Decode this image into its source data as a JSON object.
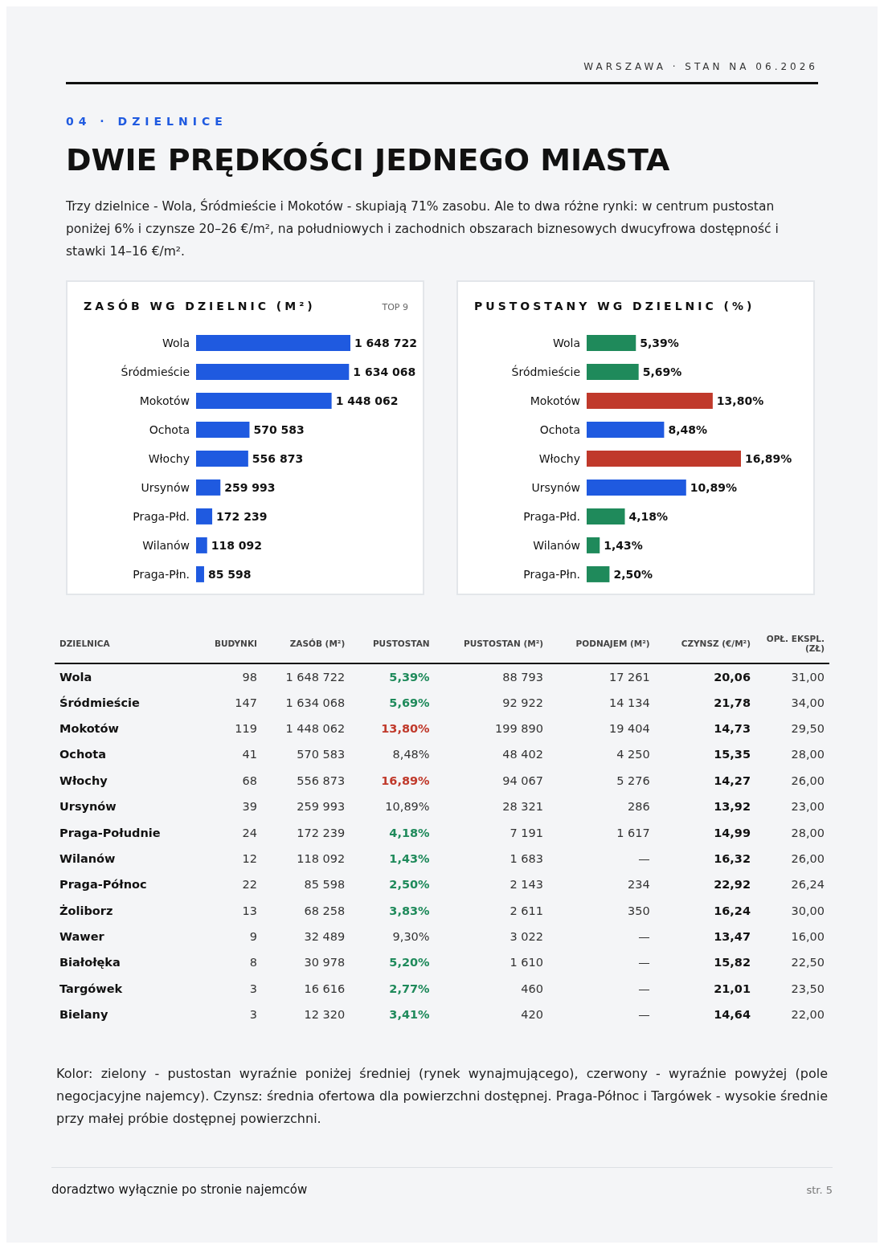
{
  "chart_data": [
    {
      "type": "other",
      "title": "DWIE PRĘDKOŚCI JEDNEGO MIASTA",
      "subtitle": "Trzy dzielnice - Wola, Śródmieście i Mokotów - skupiają 71% zasobu. Ale to dwa różne rynki: w centrum pustostan poniżej 6% i czynsze 20–26 €/m², na południowych i zachodnich obszarach biznesowych dwucyfrowa dostępność i stawki 14–16 €/m².",
      "annotations": [
        "WARSZAWA · STAN NA 06.2026",
        "04 · DZIELNICE"
      ]
    },
    {
      "type": "bar",
      "orientation": "horizontal",
      "title": "ZASÓB WG DZIELNIC (M²)",
      "annotations": [
        "TOP 9"
      ],
      "categories": [
        "Wola",
        "Śródmieście",
        "Mokotów",
        "Ochota",
        "Włochy",
        "Ursynów",
        "Praga-Płd.",
        "Wilanów",
        "Praga-Płn."
      ],
      "values": [
        1648722,
        1634068,
        1448062,
        570583,
        556873,
        259993,
        172239,
        118092,
        85598
      ],
      "color": "#1f5ae0",
      "value_labels": [
        "1 648 722",
        "1 634 068",
        "1 448 062",
        "570 583",
        "556 873",
        "259 993",
        "172 239",
        "118 092",
        "85 598"
      ]
    },
    {
      "type": "bar",
      "orientation": "horizontal",
      "title": "PUSTOSTANY WG DZIELNIC (%)",
      "categories": [
        "Wola",
        "Śródmieście",
        "Mokotów",
        "Ochota",
        "Włochy",
        "Ursynów",
        "Praga-Płd.",
        "Wilanów",
        "Praga-Płn."
      ],
      "values": [
        5.39,
        5.69,
        13.8,
        8.48,
        16.89,
        10.89,
        4.18,
        1.43,
        2.5
      ],
      "colors": [
        "#1f8a5b",
        "#1f8a5b",
        "#c0392b",
        "#1f5ae0",
        "#c0392b",
        "#1f5ae0",
        "#1f8a5b",
        "#1f8a5b",
        "#1f8a5b"
      ],
      "value_labels": [
        "5,39%",
        "5,69%",
        "13,80%",
        "8,48%",
        "16,89%",
        "10,89%",
        "4,18%",
        "1,43%",
        "2,50%"
      ]
    },
    {
      "type": "other",
      "categories": [
        "DZIELNICA",
        "BUDYNKI",
        "ZASÓB (M²)",
        "PUSTOSTAN",
        "PUSTOSTAN (M²)",
        "PODNAJEM (M²)",
        "CZYNSZ (€/M²)",
        "OPŁ. EKSPL. (ZŁ)"
      ],
      "cell_labels": [
        [
          "Wola",
          "98",
          "1 648 722",
          "5,39%",
          "88 793",
          "17 261",
          "20,06",
          "31,00"
        ],
        [
          "Śródmieście",
          "147",
          "1 634 068",
          "5,69%",
          "92 922",
          "14 134",
          "21,78",
          "34,00"
        ],
        [
          "Mokotów",
          "119",
          "1 448 062",
          "13,80%",
          "199 890",
          "19 404",
          "14,73",
          "29,50"
        ],
        [
          "Ochota",
          "41",
          "570 583",
          "8,48%",
          "48 402",
          "4 250",
          "15,35",
          "28,00"
        ],
        [
          "Włochy",
          "68",
          "556 873",
          "16,89%",
          "94 067",
          "5 276",
          "14,27",
          "26,00"
        ],
        [
          "Ursynów",
          "39",
          "259 993",
          "10,89%",
          "28 321",
          "286",
          "13,92",
          "23,00"
        ],
        [
          "Praga-Południe",
          "24",
          "172 239",
          "4,18%",
          "7 191",
          "1 617",
          "14,99",
          "28,00"
        ],
        [
          "Wilanów",
          "12",
          "118 092",
          "1,43%",
          "1 683",
          "—",
          "16,32",
          "26,00"
        ],
        [
          "Praga-Północ",
          "22",
          "85 598",
          "2,50%",
          "2 143",
          "234",
          "22,92",
          "26,24"
        ],
        [
          "Żoliborz",
          "13",
          "68 258",
          "3,83%",
          "2 611",
          "350",
          "16,24",
          "30,00"
        ],
        [
          "Wawer",
          "9",
          "32 489",
          "9,30%",
          "3 022",
          "—",
          "13,47",
          "16,00"
        ],
        [
          "Białołęka",
          "8",
          "30 978",
          "5,20%",
          "1 610",
          "—",
          "15,82",
          "22,50"
        ],
        [
          "Targówek",
          "3",
          "16 616",
          "2,77%",
          "460",
          "—",
          "21,01",
          "23,50"
        ],
        [
          "Bielany",
          "3",
          "12 320",
          "3,41%",
          "420",
          "—",
          "14,64",
          "22,00"
        ]
      ],
      "colors": [
        [
          null,
          null,
          null,
          "#1f8a5b",
          null,
          null,
          null,
          null
        ],
        [
          null,
          null,
          null,
          "#1f8a5b",
          null,
          null,
          null,
          null
        ],
        [
          null,
          null,
          null,
          "#c0392b",
          null,
          null,
          null,
          null
        ],
        [
          null,
          null,
          null,
          null,
          null,
          null,
          null,
          null
        ],
        [
          null,
          null,
          null,
          "#c0392b",
          null,
          null,
          null,
          null
        ],
        [
          null,
          null,
          null,
          null,
          null,
          null,
          null,
          null
        ],
        [
          null,
          null,
          null,
          "#1f8a5b",
          null,
          null,
          null,
          null
        ],
        [
          null,
          null,
          null,
          "#1f8a5b",
          null,
          null,
          null,
          null
        ],
        [
          null,
          null,
          null,
          "#1f8a5b",
          null,
          null,
          null,
          null
        ],
        [
          null,
          null,
          null,
          "#1f8a5b",
          null,
          null,
          null,
          null
        ],
        [
          null,
          null,
          null,
          null,
          null,
          null,
          null,
          null
        ],
        [
          null,
          null,
          null,
          "#1f8a5b",
          null,
          null,
          null,
          null
        ],
        [
          null,
          null,
          null,
          "#1f8a5b",
          null,
          null,
          null,
          null
        ],
        [
          null,
          null,
          null,
          "#1f8a5b",
          null,
          null,
          null,
          null
        ]
      ],
      "annotations": [
        "Kolor: zielony - pustostan wyraźnie poniżej średniej (rynek wynajmującego), czerwony - wyraźnie powyżej (pole negocjacyjne najemcy). Czynsz: średnia ofertowa dla powierzchni dostępnej. Praga-Północ i Targówek - wysokie średnie przy małej próbie dostępnej powierzchni.",
        "doradztwo wyłącznie po stronie najemców",
        "str. 5"
      ]
    }
  ]
}
